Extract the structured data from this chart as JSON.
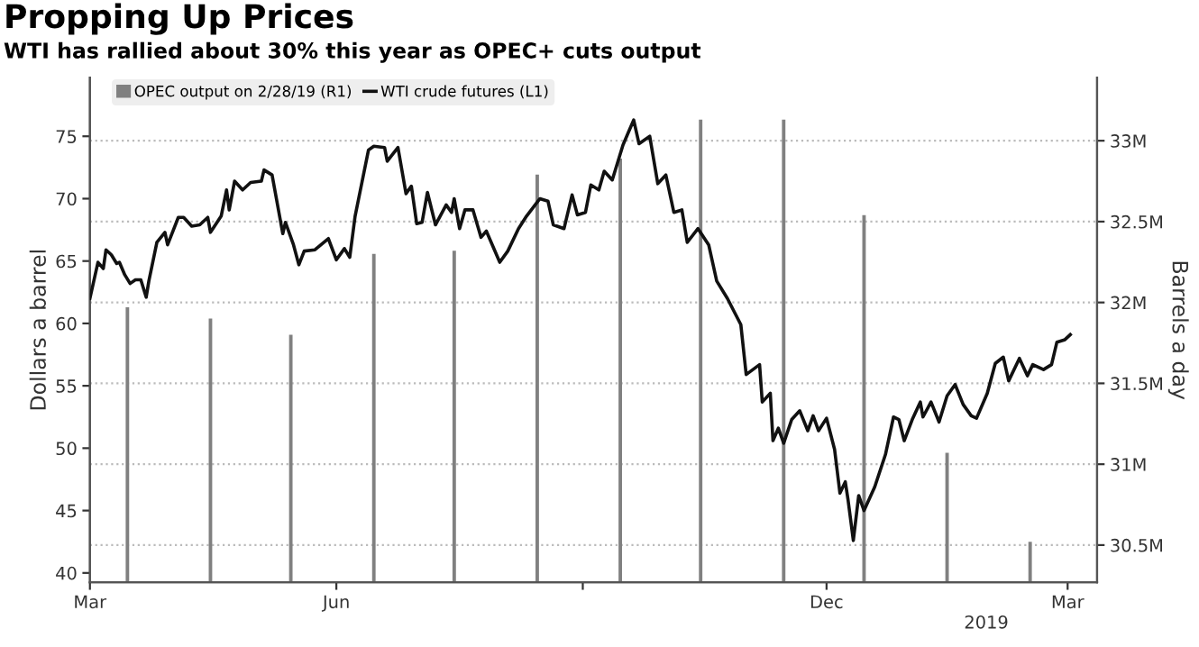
{
  "chart_data": {
    "type": "line",
    "title": "Propping Up Prices",
    "subtitle": "WTI has rallied about 30% this year as OPEC+ cuts output",
    "ylabel": "Dollars a barrel",
    "y2label": "Barrels a day",
    "annotations": [
      "2019"
    ],
    "xlim": [
      "2018-03-01",
      "2019-03-12"
    ],
    "xticks": [
      {
        "value": "2018-03-01",
        "label": "Mar"
      },
      {
        "value": "2018-06-01",
        "label": "Jun"
      },
      {
        "value": "2018-09-01",
        "label": null
      },
      {
        "value": "2018-12-01",
        "label": "Dec"
      },
      {
        "value": "2019-03-01",
        "label": "Mar"
      }
    ],
    "ylim": [
      39.25,
      79.7
    ],
    "yticks": [
      40,
      45,
      50,
      55,
      60,
      65,
      70,
      75
    ],
    "y2lim": [
      30.27,
      33.39
    ],
    "y2ticks": [
      {
        "value": 30.5,
        "label": "30.5M"
      },
      {
        "value": 31,
        "label": "31M"
      },
      {
        "value": 31.5,
        "label": "31.5M"
      },
      {
        "value": 32,
        "label": "32M"
      },
      {
        "value": 32.5,
        "label": "32.5M"
      },
      {
        "value": 33,
        "label": "33M"
      }
    ],
    "grid": "y2",
    "legend": "top left",
    "marker": "none",
    "line_style": "solid",
    "series": [
      {
        "name": "OPEC output on 2/28/19 (R1)",
        "type": "bar",
        "axis": "y2",
        "color": "#808080",
        "x": [
          "2018-03-15",
          "2018-04-15",
          "2018-05-15",
          "2018-06-15",
          "2018-07-15",
          "2018-08-15",
          "2018-09-15",
          "2018-10-15",
          "2018-11-15",
          "2018-12-15",
          "2019-01-15",
          "2019-02-15"
        ],
        "values": [
          31.97,
          31.9,
          31.8,
          32.3,
          32.32,
          32.79,
          32.89,
          33.13,
          33.13,
          32.54,
          31.07,
          30.52
        ]
      },
      {
        "name": "WTI crude futures (L1)",
        "color": "#111111",
        "x": [
          "2018-03-01",
          "2018-03-04",
          "2018-03-06",
          "2018-03-07",
          "2018-03-09",
          "2018-03-11",
          "2018-03-12",
          "2018-03-14",
          "2018-03-16",
          "2018-03-18",
          "2018-03-20",
          "2018-03-22",
          "2018-03-23",
          "2018-03-26",
          "2018-03-29",
          "2018-03-30",
          "2018-04-03",
          "2018-04-05",
          "2018-04-08",
          "2018-04-11",
          "2018-04-14",
          "2018-04-15",
          "2018-04-19",
          "2018-04-21",
          "2018-04-22",
          "2018-04-24",
          "2018-04-27",
          "2018-04-30",
          "2018-05-04",
          "2018-05-05",
          "2018-05-08",
          "2018-05-12",
          "2018-05-13",
          "2018-05-16",
          "2018-05-18",
          "2018-05-20",
          "2018-05-24",
          "2018-05-29",
          "2018-06-01",
          "2018-06-04",
          "2018-06-06",
          "2018-06-08",
          "2018-06-13",
          "2018-06-15",
          "2018-06-19",
          "2018-06-20",
          "2018-06-24",
          "2018-06-27",
          "2018-06-29",
          "2018-07-01",
          "2018-07-03",
          "2018-07-05",
          "2018-07-08",
          "2018-07-12",
          "2018-07-14",
          "2018-07-15",
          "2018-07-17",
          "2018-07-19",
          "2018-07-22",
          "2018-07-25",
          "2018-07-27",
          "2018-08-01",
          "2018-08-04",
          "2018-08-08",
          "2018-08-11",
          "2018-08-16",
          "2018-08-19",
          "2018-08-21",
          "2018-08-25",
          "2018-08-28",
          "2018-08-30",
          "2018-09-02",
          "2018-09-04",
          "2018-09-07",
          "2018-09-09",
          "2018-09-12",
          "2018-09-16",
          "2018-09-18",
          "2018-09-20",
          "2018-09-22",
          "2018-09-26",
          "2018-09-29",
          "2018-10-02",
          "2018-10-05",
          "2018-10-08",
          "2018-10-10",
          "2018-10-14",
          "2018-10-18",
          "2018-10-21",
          "2018-10-25",
          "2018-10-30",
          "2018-11-01",
          "2018-11-06",
          "2018-11-07",
          "2018-11-10",
          "2018-11-11",
          "2018-11-13",
          "2018-11-15",
          "2018-11-18",
          "2018-11-21",
          "2018-11-24",
          "2018-11-26",
          "2018-11-28",
          "2018-12-01",
          "2018-12-04",
          "2018-12-06",
          "2018-12-08",
          "2018-12-09",
          "2018-12-11",
          "2018-12-13",
          "2018-12-15",
          "2018-12-19",
          "2018-12-23",
          "2018-12-26",
          "2018-12-28",
          "2018-12-30",
          "2019-01-02",
          "2019-01-05",
          "2019-01-06",
          "2019-01-09",
          "2019-01-12",
          "2019-01-15",
          "2019-01-18",
          "2019-01-21",
          "2019-01-24",
          "2019-01-26",
          "2019-01-30",
          "2019-02-02",
          "2019-02-05",
          "2019-02-07",
          "2019-02-11",
          "2019-02-14",
          "2019-02-16",
          "2019-02-20",
          "2019-02-23",
          "2019-02-25",
          "2019-02-28",
          "2019-03-02"
        ],
        "values": [
          62.0,
          64.9,
          64.4,
          65.9,
          65.5,
          64.8,
          64.9,
          63.9,
          63.2,
          63.5,
          63.5,
          62.1,
          63.4,
          66.5,
          67.3,
          66.3,
          68.5,
          68.5,
          67.8,
          67.9,
          68.5,
          67.3,
          68.6,
          70.7,
          69.1,
          71.4,
          70.7,
          71.3,
          71.4,
          72.3,
          71.9,
          67.2,
          68.1,
          66.3,
          64.7,
          65.8,
          65.9,
          66.8,
          65.1,
          66.0,
          65.3,
          68.6,
          73.9,
          74.2,
          74.1,
          73.0,
          74.1,
          70.4,
          71.0,
          68.0,
          68.1,
          70.5,
          67.9,
          69.5,
          68.9,
          70.0,
          67.6,
          69.1,
          69.1,
          66.9,
          67.4,
          64.9,
          65.8,
          67.6,
          68.6,
          70.0,
          69.8,
          67.9,
          67.6,
          70.3,
          68.7,
          68.9,
          71.1,
          70.7,
          72.2,
          71.5,
          74.3,
          75.3,
          76.3,
          74.4,
          75.0,
          71.2,
          71.9,
          68.9,
          69.1,
          66.5,
          67.6,
          66.3,
          63.4,
          62.0,
          59.9,
          55.9,
          56.7,
          53.7,
          54.4,
          50.6,
          51.6,
          50.4,
          52.3,
          53.0,
          51.4,
          52.6,
          51.4,
          52.4,
          49.9,
          46.4,
          47.3,
          45.9,
          42.6,
          46.2,
          45.0,
          46.9,
          49.5,
          52.5,
          52.3,
          50.6,
          52.3,
          53.7,
          52.5,
          53.7,
          52.1,
          54.2,
          55.1,
          53.5,
          52.6,
          52.4,
          54.4,
          56.8,
          57.3,
          55.4,
          57.2,
          55.8,
          56.7,
          56.3,
          56.7,
          58.5,
          58.7,
          59.1
        ]
      }
    ]
  }
}
